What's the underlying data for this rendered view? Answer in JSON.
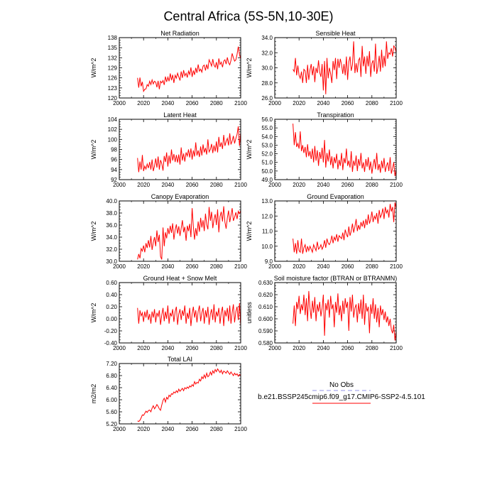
{
  "title": "Central Africa (5S-5N,10-30E)",
  "legend": {
    "header": "No Obs",
    "entries": [
      {
        "label": "b.e21.BSSP245cmip6.f09_g17.CMIP6-SSP2-4.5.101",
        "color": "#ff0000"
      }
    ],
    "obs_color": "#aaaaee"
  },
  "line_color": "#ff0000",
  "chart_data": [
    {
      "type": "line",
      "title": "Net Radiation",
      "ylabel": "W/m^2",
      "xlim": [
        2000,
        2100
      ],
      "ylim": [
        120,
        138
      ],
      "xticks": [
        2000,
        2020,
        2040,
        2060,
        2080,
        2100
      ],
      "yticks": [
        120,
        123,
        126,
        129,
        132,
        135,
        138
      ],
      "ytick_labels": [
        "120",
        "123",
        "126",
        "129",
        "132",
        "135",
        "138"
      ],
      "x_start": 2015,
      "values": [
        126.0,
        123.1,
        126.1,
        123.5,
        124.8,
        122.0,
        122.6,
        122.7,
        124.0,
        123.5,
        125.0,
        124.0,
        125.4,
        124.2,
        125.0,
        124.7,
        123.2,
        125.1,
        122.6,
        125.0,
        124.5,
        125.2,
        123.9,
        126.4,
        124.8,
        126.2,
        125.0,
        127.3,
        125.3,
        126.9,
        124.5,
        126.8,
        125.9,
        127.4,
        126.3,
        125.2,
        127.9,
        126.0,
        128.3,
        126.6,
        127.4,
        126.1,
        128.0,
        127.0,
        129.1,
        126.3,
        128.2,
        126.9,
        129.0,
        127.5,
        130.0,
        128.0,
        128.6,
        127.7,
        129.5,
        129.8,
        128.2,
        130.0,
        128.6,
        131.4,
        130.5,
        129.5,
        131.6,
        129.8,
        129.2,
        130.7,
        128.6,
        131.8,
        130.0,
        130.7,
        129.2,
        131.0,
        131.4,
        130.1,
        132.1,
        130.5,
        129.9,
        131.2,
        133.3,
        132.0,
        131.0,
        131.4,
        133.0,
        135.3,
        133.0,
        131.6
      ]
    },
    {
      "type": "line",
      "title": "Sensible Heat",
      "ylabel": "W/m^2",
      "xlim": [
        2000,
        2100
      ],
      "ylim": [
        26,
        34
      ],
      "xticks": [
        2000,
        2020,
        2040,
        2060,
        2080,
        2100
      ],
      "yticks": [
        26,
        28,
        30,
        32,
        34
      ],
      "ytick_labels": [
        "26.0",
        "28.0",
        "30.0",
        "32.0",
        "34.0"
      ],
      "x_start": 2015,
      "values": [
        29.8,
        29.5,
        31.3,
        29.0,
        30.3,
        29.0,
        28.6,
        29.5,
        28.0,
        29.8,
        29.6,
        28.0,
        30.4,
        28.4,
        29.7,
        30.5,
        29.0,
        30.2,
        28.1,
        30.0,
        29.3,
        31.0,
        29.4,
        28.8,
        30.5,
        27.0,
        30.9,
        26.5,
        31.3,
        28.6,
        30.0,
        29.2,
        28.0,
        30.9,
        29.7,
        31.3,
        28.5,
        31.2,
        30.0,
        31.2,
        30.4,
        29.2,
        30.5,
        29.0,
        31.5,
        28.4,
        30.8,
        31.5,
        29.6,
        30.4,
        33.5,
        29.3,
        30.6,
        29.4,
        31.0,
        31.3,
        28.8,
        32.9,
        30.2,
        31.5,
        29.2,
        31.6,
        30.2,
        32.2,
        28.8,
        30.6,
        31.0,
        29.5,
        33.2,
        29.2,
        30.1,
        31.6,
        29.5,
        32.4,
        30.0,
        31.6,
        30.2,
        33.5,
        31.2,
        32.0,
        31.8,
        32.6,
        31.5,
        32.9,
        32.7,
        32.0
      ]
    },
    {
      "type": "line",
      "title": "Latent Heat",
      "ylabel": "W/m^2",
      "xlim": [
        2000,
        2100
      ],
      "ylim": [
        92,
        104
      ],
      "xticks": [
        2000,
        2020,
        2040,
        2060,
        2080,
        2100
      ],
      "yticks": [
        92,
        94,
        96,
        98,
        100,
        102,
        104
      ],
      "ytick_labels": [
        "92",
        "94",
        "96",
        "98",
        "100",
        "102",
        "104"
      ],
      "x_start": 2015,
      "values": [
        96.3,
        93.5,
        95.6,
        94.0,
        96.9,
        93.7,
        94.7,
        94.1,
        95.1,
        94.3,
        95.5,
        94.0,
        96.0,
        93.7,
        94.7,
        96.2,
        94.4,
        96.6,
        94.0,
        95.9,
        95.2,
        93.8,
        96.7,
        95.5,
        97.4,
        94.6,
        96.8,
        95.2,
        98.0,
        95.8,
        97.1,
        95.5,
        96.9,
        95.4,
        97.0,
        95.0,
        98.4,
        95.8,
        97.2,
        95.6,
        97.4,
        96.7,
        98.0,
        96.4,
        98.2,
        96.0,
        97.8,
        96.6,
        99.4,
        96.8,
        97.8,
        96.5,
        98.6,
        96.8,
        99.0,
        97.4,
        98.3,
        97.0,
        100.0,
        97.5,
        98.0,
        99.1,
        97.3,
        98.8,
        97.6,
        99.6,
        97.4,
        100.5,
        98.5,
        99.4,
        98.1,
        100.9,
        98.7,
        99.6,
        100.2,
        98.8,
        101.2,
        99.0,
        99.7,
        100.7,
        99.2,
        100.2,
        101.0,
        102.6,
        98.7,
        101.4
      ]
    },
    {
      "type": "line",
      "title": "Transpiration",
      "ylabel": "W/m^2",
      "xlim": [
        2000,
        2100
      ],
      "ylim": [
        49,
        56
      ],
      "xticks": [
        2000,
        2020,
        2040,
        2060,
        2080,
        2100
      ],
      "yticks": [
        49,
        50,
        51,
        52,
        53,
        54,
        55,
        56
      ],
      "ytick_labels": [
        "49.0",
        "50.0",
        "51.0",
        "52.0",
        "53.0",
        "54.0",
        "55.0",
        "56.0"
      ],
      "x_start": 2015,
      "values": [
        55.5,
        53.0,
        54.5,
        52.8,
        53.2,
        52.6,
        54.6,
        52.3,
        53.0,
        52.1,
        52.8,
        51.6,
        53.1,
        51.7,
        52.3,
        51.4,
        52.6,
        51.0,
        52.9,
        51.2,
        52.4,
        50.6,
        52.2,
        51.4,
        52.7,
        51.0,
        53.6,
        50.4,
        52.1,
        51.1,
        52.5,
        50.7,
        51.7,
        50.3,
        51.6,
        50.9,
        52.0,
        50.2,
        51.3,
        50.6,
        52.1,
        50.1,
        51.5,
        50.9,
        52.6,
        50.6,
        51.2,
        50.4,
        52.3,
        49.9,
        51.2,
        50.6,
        51.8,
        50.0,
        51.4,
        50.6,
        52.1,
        50.3,
        51.0,
        49.9,
        51.4,
        50.5,
        51.6,
        50.1,
        51.1,
        49.7,
        50.7,
        51.4,
        50.2,
        52.1,
        50.1,
        50.8,
        49.8,
        51.2,
        50.3,
        51.5,
        49.9,
        50.6,
        51.0,
        50.0,
        51.6,
        49.7,
        50.3,
        51.0,
        49.4,
        50.2
      ]
    },
    {
      "type": "line",
      "title": "Canopy Evaporation",
      "ylabel": "W/m^2",
      "xlim": [
        2000,
        2100
      ],
      "ylim": [
        30,
        40
      ],
      "xticks": [
        2000,
        2020,
        2040,
        2060,
        2080,
        2100
      ],
      "yticks": [
        30,
        32,
        34,
        36,
        38,
        40
      ],
      "ytick_labels": [
        "30.0",
        "32.0",
        "34.0",
        "36.0",
        "38.0",
        "40.0"
      ],
      "x_start": 2015,
      "values": [
        30.3,
        31.2,
        30.5,
        32.1,
        31.7,
        32.6,
        31.5,
        33.0,
        32.2,
        33.5,
        32.3,
        34.2,
        31.9,
        33.1,
        34.0,
        32.5,
        35.1,
        33.2,
        34.4,
        30.8,
        30.3,
        35.6,
        32.5,
        34.8,
        33.8,
        35.5,
        34.5,
        35.9,
        34.7,
        36.3,
        33.6,
        35.2,
        36.1,
        34.6,
        35.8,
        34.2,
        35.5,
        36.8,
        34.8,
        35.7,
        33.4,
        35.9,
        35.0,
        36.2,
        34.0,
        38.8,
        35.8,
        33.6,
        35.5,
        34.2,
        36.6,
        34.9,
        37.2,
        35.6,
        36.8,
        35.0,
        37.9,
        36.1,
        35.3,
        39.0,
        36.7,
        38.2,
        35.5,
        36.9,
        37.8,
        36.0,
        38.6,
        34.8,
        37.4,
        38.2,
        36.6,
        39.1,
        36.5,
        35.4,
        37.2,
        38.4,
        36.5,
        37.6,
        38.8,
        36.7,
        37.3,
        38.1,
        37.0,
        38.3,
        37.9,
        38.4
      ]
    },
    {
      "type": "line",
      "title": "Ground Evaporation",
      "ylabel": "W/m^2",
      "xlim": [
        2000,
        2100
      ],
      "ylim": [
        9,
        13
      ],
      "xticks": [
        2000,
        2020,
        2040,
        2060,
        2080,
        2100
      ],
      "yticks": [
        9,
        10,
        11,
        12,
        13
      ],
      "ytick_labels": [
        "9.0",
        "10.0",
        "11.0",
        "12.0",
        "13.0"
      ],
      "x_start": 2015,
      "values": [
        10.5,
        9.6,
        10.2,
        9.5,
        10.4,
        9.7,
        9.6,
        10.5,
        9.5,
        9.9,
        10.1,
        9.6,
        10.0,
        9.7,
        10.0,
        9.8,
        9.6,
        10.1,
        9.9,
        9.7,
        10.3,
        9.8,
        9.9,
        10.1,
        9.8,
        10.0,
        10.4,
        9.9,
        10.5,
        10.2,
        10.1,
        10.3,
        10.7,
        10.2,
        10.6,
        10.4,
        10.8,
        10.3,
        10.7,
        10.6,
        10.5,
        10.9,
        10.4,
        11.1,
        10.8,
        10.6,
        11.3,
        10.7,
        11.0,
        11.5,
        10.9,
        11.3,
        11.8,
        11.0,
        11.4,
        11.1,
        11.6,
        11.3,
        11.7,
        11.2,
        11.8,
        11.4,
        12.1,
        11.5,
        11.8,
        12.3,
        11.6,
        12.0,
        11.8,
        12.2,
        11.5,
        12.4,
        11.9,
        12.1,
        12.5,
        11.8,
        12.6,
        12.2,
        12.4,
        11.9,
        12.8,
        12.3,
        12.6,
        11.6,
        12.9,
        12.5
      ]
    },
    {
      "type": "line",
      "title": "Ground Heat + Snow Melt",
      "ylabel": "W/m^2",
      "xlim": [
        2000,
        2100
      ],
      "ylim": [
        -0.4,
        0.6
      ],
      "xticks": [
        2000,
        2020,
        2040,
        2060,
        2080,
        2100
      ],
      "yticks": [
        -0.4,
        -0.2,
        0,
        0.2,
        0.4,
        0.6
      ],
      "ytick_labels": [
        "-0.40",
        "-0.20",
        "0.00",
        "0.20",
        "0.40",
        "0.60"
      ],
      "x_start": 2015,
      "values": [
        0.18,
        -0.08,
        0.14,
        0.05,
        0.1,
        -0.05,
        0.12,
        0.02,
        0.15,
        -0.02,
        0.08,
        -0.08,
        0.12,
        0.02,
        0.16,
        -0.06,
        0.1,
        0.04,
        0.14,
        -0.1,
        0.06,
        0.18,
        -0.04,
        0.12,
        0.0,
        0.22,
        -0.08,
        0.1,
        0.04,
        0.16,
        -0.05,
        0.12,
        0.2,
        -0.1,
        0.08,
        0.16,
        -0.02,
        0.14,
        0.05,
        0.22,
        -0.08,
        0.1,
        0.0,
        0.18,
        -0.12,
        0.08,
        0.2,
        0.02,
        0.14,
        -0.06,
        0.12,
        0.22,
        -0.04,
        0.1,
        0.18,
        -0.08,
        0.14,
        0.02,
        0.2,
        -0.1,
        0.08,
        0.16,
        -0.02,
        0.24,
        -0.06,
        0.12,
        0.04,
        0.18,
        -0.08,
        0.1,
        0.2,
        -0.12,
        0.14,
        0.04,
        0.18,
        -0.04,
        0.22,
        -0.08,
        0.1,
        0.24,
        -0.06,
        0.12,
        0.2,
        -0.02,
        0.26,
        -0.12
      ]
    },
    {
      "type": "line",
      "title": "Soil moisture factor (BTRAN or BTRANMN)",
      "ylabel": "unitless",
      "xlim": [
        2000,
        2100
      ],
      "ylim": [
        0.58,
        0.63
      ],
      "xticks": [
        2000,
        2020,
        2040,
        2060,
        2080,
        2100
      ],
      "yticks": [
        0.58,
        0.59,
        0.6,
        0.61,
        0.62,
        0.63
      ],
      "ytick_labels": [
        "0.580",
        "0.590",
        "0.600",
        "0.610",
        "0.620",
        "0.630"
      ],
      "x_start": 2015,
      "values": [
        0.596,
        0.611,
        0.594,
        0.614,
        0.608,
        0.619,
        0.604,
        0.612,
        0.607,
        0.62,
        0.603,
        0.617,
        0.598,
        0.623,
        0.609,
        0.6,
        0.615,
        0.605,
        0.618,
        0.598,
        0.612,
        0.606,
        0.614,
        0.602,
        0.609,
        0.62,
        0.586,
        0.613,
        0.607,
        0.616,
        0.601,
        0.619,
        0.608,
        0.612,
        0.593,
        0.614,
        0.605,
        0.621,
        0.603,
        0.611,
        0.598,
        0.615,
        0.604,
        0.617,
        0.609,
        0.614,
        0.59,
        0.618,
        0.606,
        0.62,
        0.601,
        0.609,
        0.612,
        0.597,
        0.613,
        0.604,
        0.616,
        0.6,
        0.62,
        0.595,
        0.613,
        0.606,
        0.61,
        0.588,
        0.612,
        0.604,
        0.617,
        0.6,
        0.612,
        0.597,
        0.609,
        0.593,
        0.611,
        0.603,
        0.608,
        0.599,
        0.606,
        0.597,
        0.602,
        0.594,
        0.6,
        0.591,
        0.588,
        0.595,
        0.582,
        0.59
      ]
    },
    {
      "type": "line",
      "title": "Total LAI",
      "ylabel": "m2/m2",
      "xlim": [
        2000,
        2100
      ],
      "ylim": [
        5.2,
        7.2
      ],
      "xticks": [
        2000,
        2020,
        2040,
        2060,
        2080,
        2100
      ],
      "yticks": [
        5.2,
        5.6,
        6.0,
        6.4,
        6.8,
        7.2
      ],
      "ytick_labels": [
        "5.20",
        "5.60",
        "6.00",
        "6.40",
        "6.80",
        "7.20"
      ],
      "x_start": 2015,
      "values": [
        5.3,
        5.28,
        5.32,
        5.4,
        5.5,
        5.48,
        5.55,
        5.62,
        5.58,
        5.64,
        5.66,
        5.6,
        5.72,
        5.8,
        5.7,
        5.76,
        5.84,
        5.78,
        5.7,
        5.65,
        5.82,
        5.98,
        6.05,
        5.92,
        6.08,
        6.02,
        6.15,
        6.1,
        6.2,
        6.18,
        6.26,
        6.22,
        6.3,
        6.24,
        6.35,
        6.28,
        6.33,
        6.38,
        6.3,
        6.4,
        6.36,
        6.42,
        6.38,
        6.46,
        6.42,
        6.5,
        6.45,
        6.6,
        6.52,
        6.58,
        6.55,
        6.68,
        6.62,
        6.76,
        6.7,
        6.82,
        6.72,
        6.88,
        6.76,
        6.8,
        6.92,
        6.82,
        6.96,
        6.88,
        7.0,
        6.93,
        7.02,
        6.96,
        6.9,
        6.98,
        6.86,
        6.95,
        6.92,
        6.88,
        6.96,
        6.9,
        6.84,
        6.92,
        6.86,
        6.8,
        6.88,
        6.82,
        6.86,
        6.78,
        6.84,
        6.8
      ]
    }
  ]
}
